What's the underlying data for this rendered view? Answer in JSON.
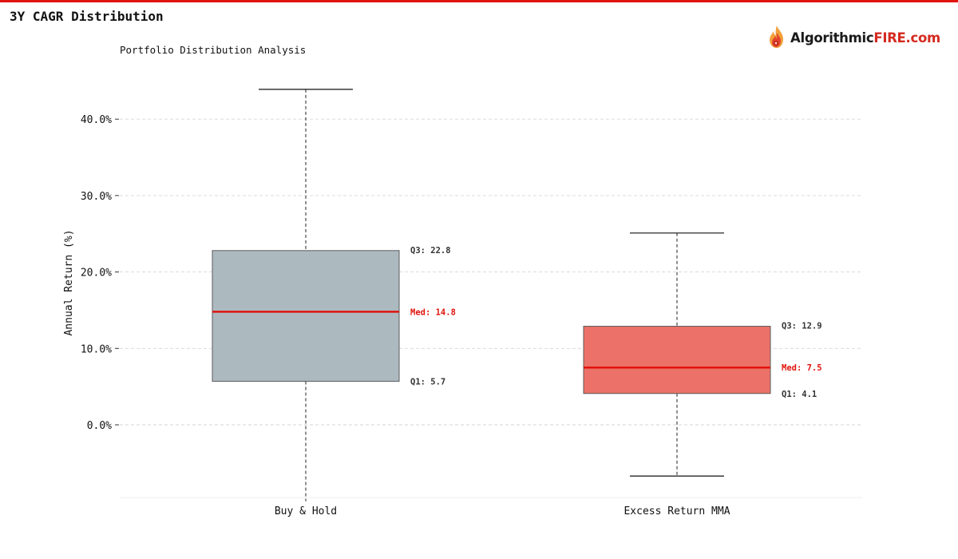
{
  "page": {
    "title": "3Y CAGR Distribution"
  },
  "brand": {
    "name_part1": "Algorithmic",
    "name_part2": "FIRE.com",
    "color_dark": "#1a1a1a",
    "color_accent": "#d42a20"
  },
  "chart_data": {
    "type": "boxplot",
    "subtitle": "Portfolio Distribution Analysis",
    "ylabel": "Annual Return (%)",
    "ylim": [
      -9.5,
      48
    ],
    "yticks": [
      0,
      10,
      20,
      30,
      40
    ],
    "ytick_labels": [
      "0.0%",
      "10.0%",
      "20.0%",
      "30.0%",
      "40.0%"
    ],
    "grid": true,
    "categories": [
      "Buy & Hold",
      "Excess Return MMA"
    ],
    "boxes": [
      {
        "name": "Buy & Hold",
        "whisker_low": -10,
        "q1": 5.7,
        "median": 14.8,
        "q3": 22.8,
        "whisker_high": 43.9,
        "color": "#acbac0",
        "q3_label": "Q3: 22.8",
        "median_label": "Med: 14.8",
        "q1_label": "Q1: 5.7"
      },
      {
        "name": "Excess Return MMA",
        "whisker_low": -6.7,
        "q1": 4.1,
        "median": 7.5,
        "q3": 12.9,
        "whisker_high": 25.1,
        "color": "#ec7168",
        "q3_label": "Q3: 12.9",
        "median_label": "Med: 7.5",
        "q1_label": "Q1: 4.1"
      }
    ],
    "median_color": "#e0140d",
    "label_color": "#333333",
    "accent_color": "#e0140d"
  }
}
